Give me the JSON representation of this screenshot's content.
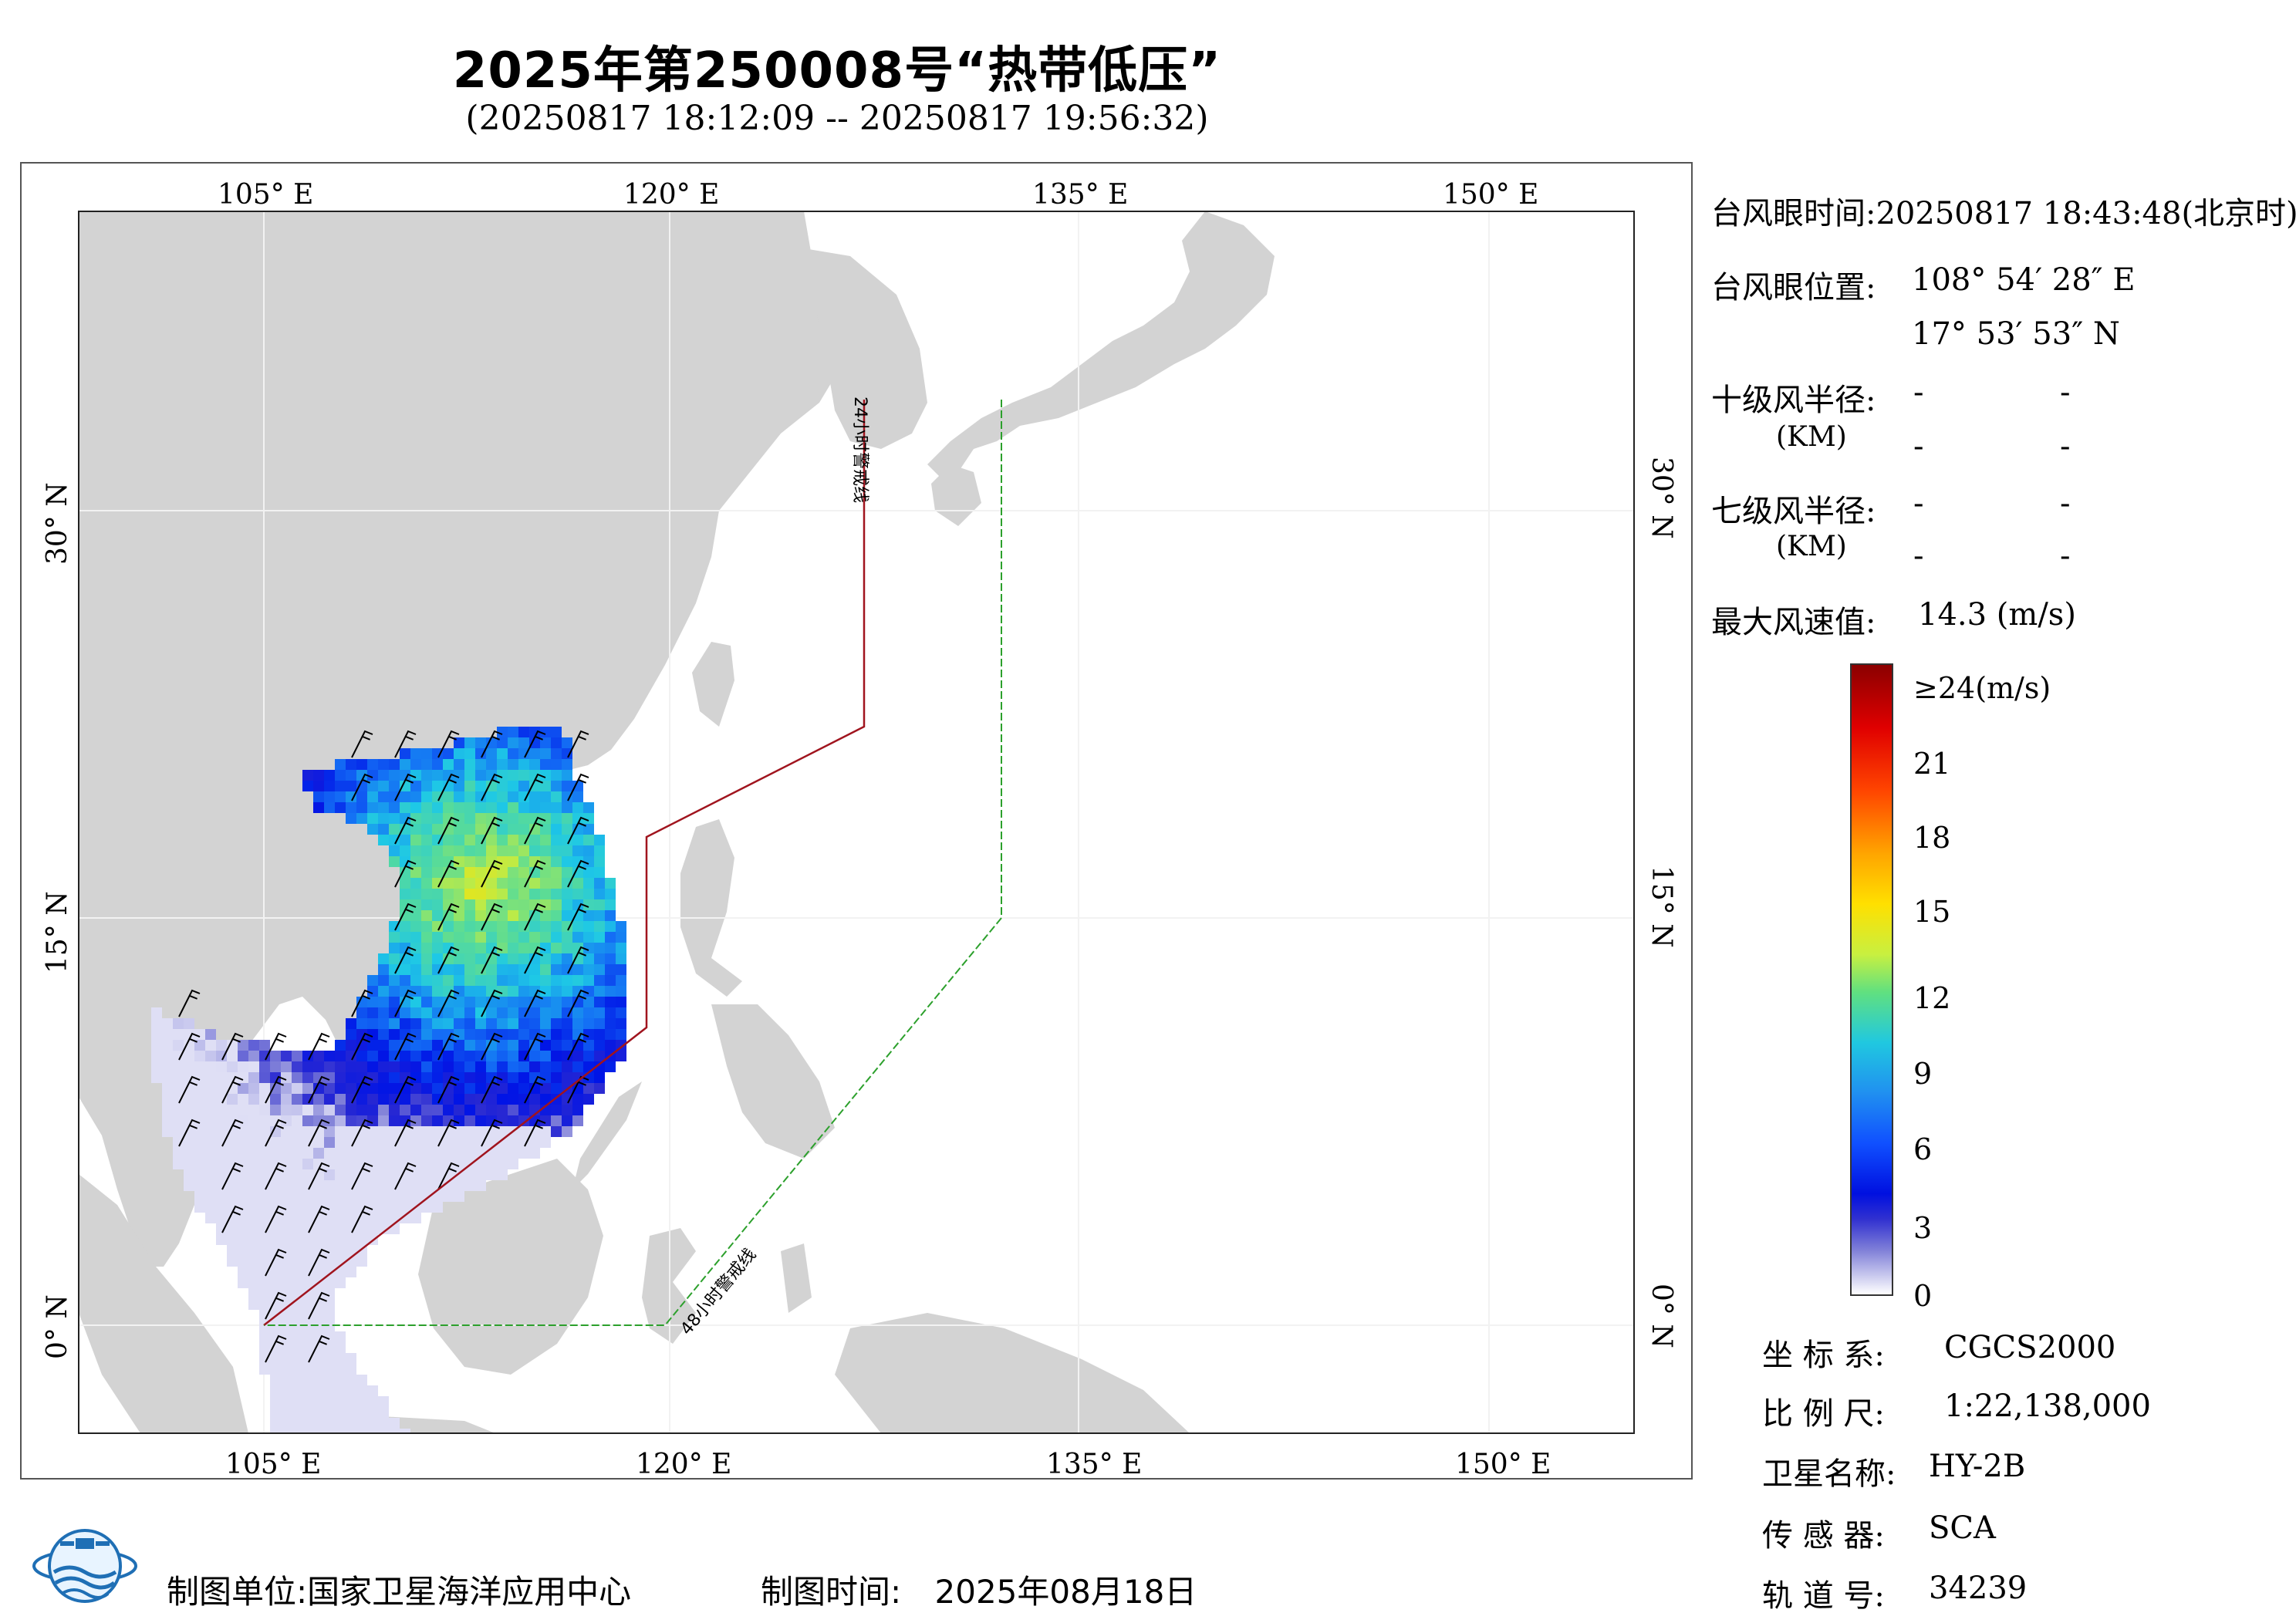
{
  "header": {
    "title": "2025年第250008号“热带低压”",
    "time_range": "(20250817 18:12:09 -- 20250817 19:56:32)"
  },
  "map": {
    "lon_ticks": [
      "105° E",
      "120° E",
      "135° E",
      "150° E"
    ],
    "lat_ticks": [
      "30° N",
      "15° N",
      "0° N"
    ],
    "warning_24h": "24小时警戒线",
    "warning_48h": "48小时警戒线",
    "colors": {
      "land": "#d3d3d3",
      "sea": "#ffffff",
      "line24": "#a0141e",
      "line48": "#2ca02c"
    }
  },
  "info": {
    "eye_time_label": "台风眼时间:",
    "eye_time_value": "20250817 18:43:48(北京时)",
    "eye_pos_label": "台风眼位置:",
    "eye_lon": "108° 54′ 28″ E",
    "eye_lat": "17° 53′ 53″ N",
    "r10_label": "十级风半径:",
    "r7_label": "七级风半径:",
    "km_unit": "(KM)",
    "dash": "-",
    "max_wind_label": "最大风速值:",
    "max_wind_value": "14.3 (m/s)"
  },
  "colorbar": {
    "labels": [
      "≥24(m/s)",
      "21",
      "18",
      "15",
      "12",
      "9",
      "6",
      "3",
      "0"
    ]
  },
  "meta": {
    "coord_label": "坐 标 系:",
    "coord_value": "CGCS2000",
    "scale_label": "比 例 尺:",
    "scale_value": "1:22,138,000",
    "satellite_label": "卫星名称:",
    "satellite_value": "HY-2B",
    "sensor_label": "传 感 器:",
    "sensor_value": "SCA",
    "orbit_label": "轨 道 号:",
    "orbit_value": "34239"
  },
  "footer": {
    "unit_label": "制图单位:",
    "unit_value": "国家卫星海洋应用中心",
    "time_label": "制图时间:",
    "time_value": "2025年08月18日"
  }
}
